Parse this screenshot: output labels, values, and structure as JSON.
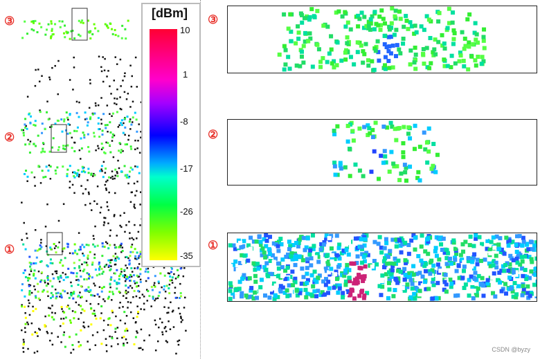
{
  "colorbar": {
    "unit": "[dBm]",
    "ticks": [
      "10",
      "1",
      "-8",
      "-17",
      "-26",
      "-35"
    ]
  },
  "markers": [
    "③",
    "②",
    "①"
  ],
  "right_markers": [
    "③",
    "②",
    "①"
  ],
  "colors": {
    "accent": "#e8322b"
  },
  "watermark": "CSDN @byzy"
}
